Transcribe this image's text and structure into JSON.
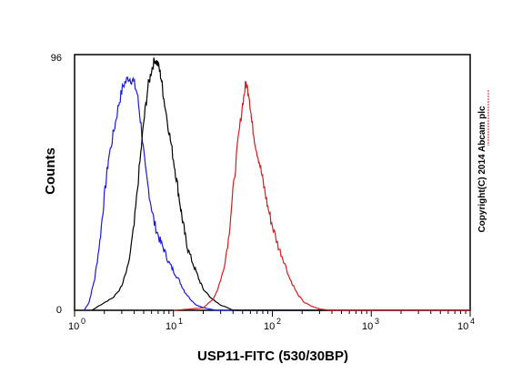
{
  "chart_data": {
    "type": "line",
    "title": "",
    "xlabel": "USP11-FITC (530/30BP)",
    "ylabel": "Counts",
    "x_scale": "log",
    "xlim": [
      1,
      10000
    ],
    "ylim": [
      0,
      96
    ],
    "x_ticks": [
      {
        "base": "10",
        "exp": "0"
      },
      {
        "base": "10",
        "exp": "1"
      },
      {
        "base": "10",
        "exp": "2"
      },
      {
        "base": "10",
        "exp": "3"
      },
      {
        "base": "10",
        "exp": "4"
      }
    ],
    "y_ticks": [
      "0",
      "96"
    ],
    "grid": false,
    "legend": "none",
    "annotation": "Copyright(C) 2014 Abcam plc",
    "series": [
      {
        "color": "#1a1adc",
        "x": [
          1.25,
          1.4,
          1.6,
          1.8,
          2.0,
          2.2,
          2.5,
          2.8,
          3.1,
          3.5,
          3.9,
          4.3,
          4.7,
          5.2,
          5.8,
          6.4,
          7.2,
          8.0,
          9.0,
          10.0,
          11.5,
          13.0,
          15.0,
          17.0,
          20.0,
          23.0,
          27.0
        ],
        "y": [
          0,
          3,
          12,
          26,
          43,
          57,
          68,
          78,
          85,
          88,
          87,
          82,
          70,
          53,
          42,
          33,
          27,
          23,
          18,
          15,
          11,
          7,
          4,
          2,
          1,
          0.5,
          0
        ]
      },
      {
        "color": "#000000",
        "x": [
          1.5,
          2.0,
          2.5,
          3.0,
          3.5,
          4.0,
          4.5,
          5.0,
          5.5,
          6.0,
          6.5,
          7.0,
          7.5,
          8.0,
          9.0,
          10.0,
          11.0,
          12.0,
          13.0,
          14.0,
          16.0,
          18.0,
          20.0,
          25.0,
          30.0,
          35.0,
          40.0
        ],
        "y": [
          0,
          3,
          5,
          9,
          17,
          32,
          53,
          71,
          84,
          91,
          95,
          93,
          88,
          80,
          68,
          57,
          47,
          37,
          29,
          23,
          17,
          12,
          8,
          4,
          2,
          1,
          0
        ]
      },
      {
        "color": "#d21e1e",
        "x": [
          10,
          15,
          20,
          25,
          28,
          32,
          36,
          40,
          45,
          50,
          54,
          58,
          62,
          68,
          75,
          82,
          90,
          100,
          115,
          130,
          150,
          180,
          210,
          250,
          300,
          350,
          400
        ],
        "y": [
          0,
          0.5,
          1,
          4,
          8,
          15,
          27,
          45,
          64,
          78,
          86,
          82,
          71,
          62,
          55,
          47,
          39,
          32,
          24,
          19,
          12,
          6,
          3,
          1.5,
          0.5,
          0.2,
          0
        ]
      }
    ]
  }
}
